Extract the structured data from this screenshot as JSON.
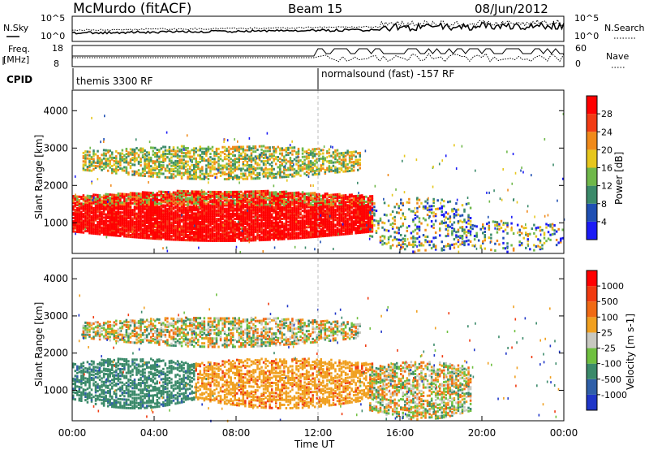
{
  "header": {
    "station": "McMurdo (fitACF)",
    "beam": "Beam 15",
    "date": "08/Jun/2012"
  },
  "noise_panel": {
    "left_label": "N.Sky",
    "right_label": "N.Search",
    "left_ticks": [
      "10^5",
      "10^0"
    ],
    "right_ticks": [
      "10^5",
      "10^0"
    ]
  },
  "freq_panel": {
    "left_label_line1": "Freq.",
    "left_label_line2": "[MHz]",
    "right_label": "Nave",
    "left_ticks": [
      "18",
      "8"
    ],
    "right_ticks": [
      "60",
      "0"
    ]
  },
  "cpid": {
    "label": "CPID",
    "modes": [
      {
        "name": "themis 3300 RF",
        "start_hour": 0
      },
      {
        "name": "normalsound (fast) -157 RF",
        "start_hour": 12
      }
    ]
  },
  "time_axis": {
    "label": "Time UT",
    "ticks": [
      "00:00",
      "04:00",
      "08:00",
      "12:00",
      "16:00",
      "20:00",
      "00:00"
    ]
  },
  "chart_data": [
    {
      "type": "heatmap",
      "name": "power",
      "ylabel": "Slant Range [km]",
      "yticks": [
        1000,
        2000,
        3000,
        4000
      ],
      "ylim": [
        180,
        4550
      ],
      "xlim_hours": [
        0,
        24
      ],
      "colorbar": {
        "label": "Power [dB]",
        "ticks": [
          "4",
          "8",
          "12",
          "16",
          "20",
          "24",
          "28"
        ],
        "colors": [
          "#1b1bf5",
          "#1f4fb3",
          "#3b8a6a",
          "#6fb84a",
          "#e6c61d",
          "#f08a1a",
          "#f23b14",
          "#ff0000"
        ]
      },
      "echo_regions": [
        {
          "from_hour": 0.0,
          "to_hour": 14.6,
          "min_km": 550,
          "max_km": 1900,
          "level": "high"
        },
        {
          "from_hour": 0.5,
          "to_hour": 14.0,
          "min_km": 2200,
          "max_km": 3100,
          "level": "medium"
        },
        {
          "from_hour": 14.5,
          "to_hour": 19.5,
          "min_km": 250,
          "max_km": 1700,
          "level": "low"
        },
        {
          "from_hour": 19.0,
          "to_hour": 24.0,
          "min_km": 250,
          "max_km": 1100,
          "level": "low"
        }
      ]
    },
    {
      "type": "heatmap",
      "name": "velocity",
      "ylabel": "Slant Range [km]",
      "yticks": [
        1000,
        2000,
        3000,
        4000
      ],
      "ylim": [
        180,
        4550
      ],
      "xlim_hours": [
        0,
        24
      ],
      "colorbar": {
        "label": "Velocity [m s-1]",
        "ticks": [
          "1000",
          "500",
          "100",
          "25",
          "-25",
          "-100",
          "-500",
          "-1000"
        ],
        "colors": [
          "#1f36c8",
          "#2f5fa8",
          "#3b8a6a",
          "#6fc040",
          "#c8c8c0",
          "#f0a020",
          "#f06a14",
          "#f03a10",
          "#ff0000"
        ]
      },
      "echo_regions": [
        {
          "from_hour": 0.0,
          "to_hour": 6.0,
          "min_km": 550,
          "max_km": 1900,
          "level": "green"
        },
        {
          "from_hour": 6.0,
          "to_hour": 14.6,
          "min_km": 550,
          "max_km": 1900,
          "level": "orange"
        },
        {
          "from_hour": 0.5,
          "to_hour": 14.0,
          "min_km": 2200,
          "max_km": 3000,
          "level": "mixed"
        },
        {
          "from_hour": 14.5,
          "to_hour": 19.5,
          "min_km": 250,
          "max_km": 1800,
          "level": "mixed"
        }
      ]
    }
  ]
}
